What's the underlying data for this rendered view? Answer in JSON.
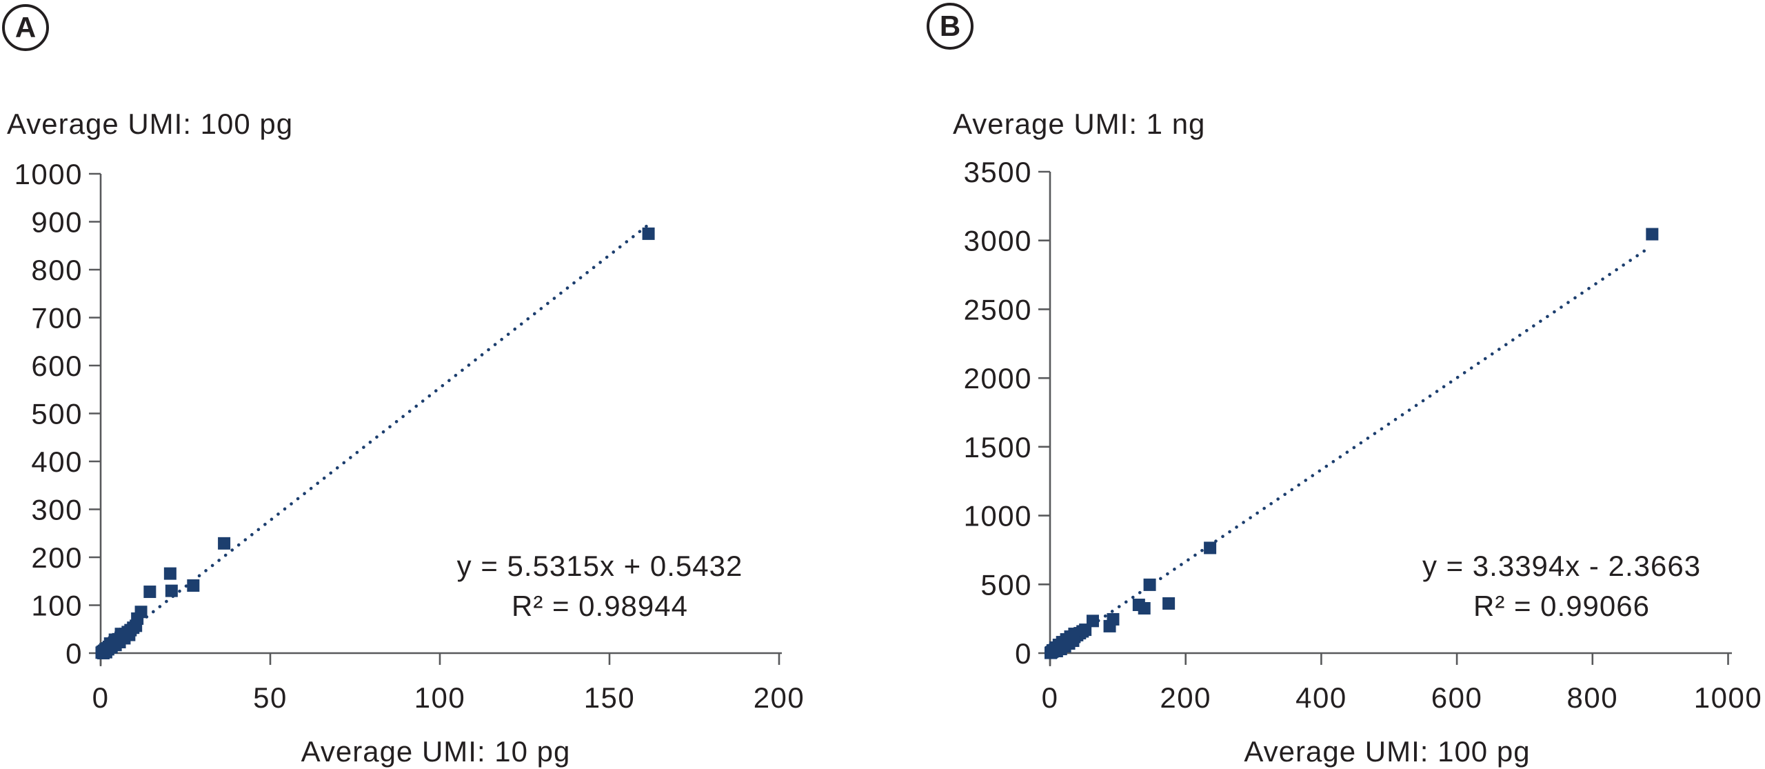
{
  "figure": {
    "panels": [
      {
        "badge": "A",
        "y_axis_title": "Average UMI: 100 pg",
        "x_axis_title": "Average UMI: 10 pg",
        "equation": "y = 5.5315x + 0.5432",
        "r_squared": "R² = 0.98944"
      },
      {
        "badge": "B",
        "y_axis_title": "Average UMI: 1 ng",
        "x_axis_title": "Average UMI: 100 pg",
        "equation": "y = 3.3394x - 2.3663",
        "r_squared": "R² = 0.99066"
      }
    ]
  },
  "colors": {
    "marker": "#1c3e6e",
    "trend": "#1c3e6e",
    "axis": "#58595b",
    "text": "#231f20"
  },
  "chart_data": [
    {
      "panel": "A",
      "type": "scatter",
      "title": "Average UMI: 100 pg",
      "xlabel": "Average UMI: 10 pg",
      "ylabel": "Average UMI: 100 pg",
      "xlim": [
        0,
        200
      ],
      "ylim": [
        0,
        1000
      ],
      "xticks": [
        0,
        50,
        100,
        150,
        200
      ],
      "yticks": [
        0,
        100,
        200,
        300,
        400,
        500,
        600,
        700,
        800,
        900,
        1000
      ],
      "grid": false,
      "legend": "none",
      "marker_shape": "square",
      "equation": "y = 5.5315x + 0.5432",
      "r_squared": 0.98944,
      "trendline": {
        "slope": 5.5315,
        "intercept": 0.5432,
        "x_start": 0,
        "x_end": 161.5,
        "style": "dotted"
      },
      "points": [
        [
          0.3,
          1
        ],
        [
          0.6,
          3
        ],
        [
          1,
          5
        ],
        [
          1.4,
          8
        ],
        [
          1.9,
          10
        ],
        [
          2.4,
          13
        ],
        [
          2.9,
          16
        ],
        [
          3.4,
          19
        ],
        [
          4,
          22
        ],
        [
          4.6,
          25
        ],
        [
          5.2,
          29
        ],
        [
          5.9,
          32
        ],
        [
          6.6,
          36
        ],
        [
          7.3,
          40
        ],
        [
          8,
          44
        ],
        [
          8.8,
          48
        ],
        [
          9.6,
          53
        ],
        [
          1.2,
          3
        ],
        [
          2.2,
          8
        ],
        [
          3.2,
          12
        ],
        [
          4.4,
          17
        ],
        [
          5.6,
          23
        ],
        [
          7,
          31
        ],
        [
          8.4,
          38
        ],
        [
          2.8,
          20
        ],
        [
          4.2,
          28
        ],
        [
          6,
          40
        ],
        [
          0.8,
          0
        ],
        [
          1.6,
          2
        ],
        [
          10.4,
          57
        ],
        [
          10.8,
          72
        ],
        [
          11.9,
          86
        ],
        [
          14.5,
          128
        ],
        [
          20.5,
          166
        ],
        [
          20.9,
          130
        ],
        [
          27.3,
          141
        ],
        [
          36.4,
          229
        ],
        [
          161.5,
          875
        ]
      ]
    },
    {
      "panel": "B",
      "type": "scatter",
      "title": "Average UMI: 1 ng",
      "xlabel": "Average UMI: 100 pg",
      "ylabel": "Average UMI: 1 ng",
      "xlim": [
        0,
        1000
      ],
      "ylim": [
        0,
        3500
      ],
      "xticks": [
        0,
        200,
        400,
        600,
        800,
        1000
      ],
      "yticks": [
        0,
        500,
        1000,
        1500,
        2000,
        2500,
        3000,
        3500
      ],
      "grid": false,
      "legend": "none",
      "marker_shape": "square",
      "equation": "y = 3.3394x - 2.3663",
      "r_squared": 0.99066,
      "trendline": {
        "slope": 3.3394,
        "intercept": -2.3663,
        "x_start": 0,
        "x_end": 880,
        "style": "dotted"
      },
      "points": [
        [
          1,
          2
        ],
        [
          2,
          6
        ],
        [
          3.5,
          11
        ],
        [
          5,
          16
        ],
        [
          7,
          23
        ],
        [
          9,
          29
        ],
        [
          11,
          36
        ],
        [
          13.5,
          44
        ],
        [
          16,
          52
        ],
        [
          19,
          62
        ],
        [
          22,
          72
        ],
        [
          25,
          82
        ],
        [
          28,
          92
        ],
        [
          32,
          105
        ],
        [
          36,
          118
        ],
        [
          40,
          131
        ],
        [
          44,
          145
        ],
        [
          48,
          158
        ],
        [
          4,
          20
        ],
        [
          8,
          40
        ],
        [
          13,
          60
        ],
        [
          18,
          80
        ],
        [
          24,
          100
        ],
        [
          30,
          120
        ],
        [
          36,
          140
        ],
        [
          10,
          15
        ],
        [
          16,
          30
        ],
        [
          22,
          50
        ],
        [
          28,
          70
        ],
        [
          34,
          90
        ],
        [
          52,
          170
        ],
        [
          63,
          234
        ],
        [
          88,
          196
        ],
        [
          93,
          246
        ],
        [
          131,
          351
        ],
        [
          139,
          326
        ],
        [
          147,
          497
        ],
        [
          175,
          361
        ],
        [
          236,
          765
        ],
        [
          888,
          3046
        ]
      ]
    }
  ]
}
